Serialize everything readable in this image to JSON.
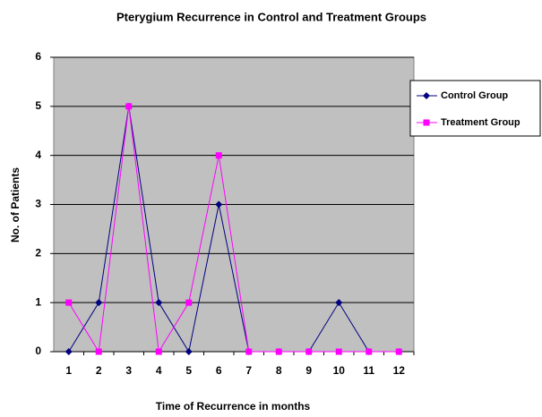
{
  "chart_data": {
    "type": "line",
    "title": "Pterygium Recurrence in Control and Treatment Groups",
    "x_label": "Time of Recurrence in months",
    "y_label": "No. of Patients",
    "categories": [
      "1",
      "2",
      "3",
      "4",
      "5",
      "6",
      "7",
      "8",
      "9",
      "10",
      "11",
      "12"
    ],
    "series": [
      {
        "name": "Control Group",
        "color": "#000080",
        "marker": "diamond",
        "values": [
          0,
          1,
          5,
          1,
          0,
          3,
          0,
          0,
          0,
          1,
          0,
          0
        ]
      },
      {
        "name": "Treatment Group",
        "color": "#ff00ff",
        "marker": "square",
        "values": [
          1,
          0,
          5,
          0,
          1,
          4,
          0,
          0,
          0,
          0,
          0,
          0
        ]
      }
    ],
    "ylim": [
      0,
      6
    ],
    "yticks": [
      0,
      1,
      2,
      3,
      4,
      5,
      6
    ],
    "grid": true,
    "legend": "right"
  }
}
